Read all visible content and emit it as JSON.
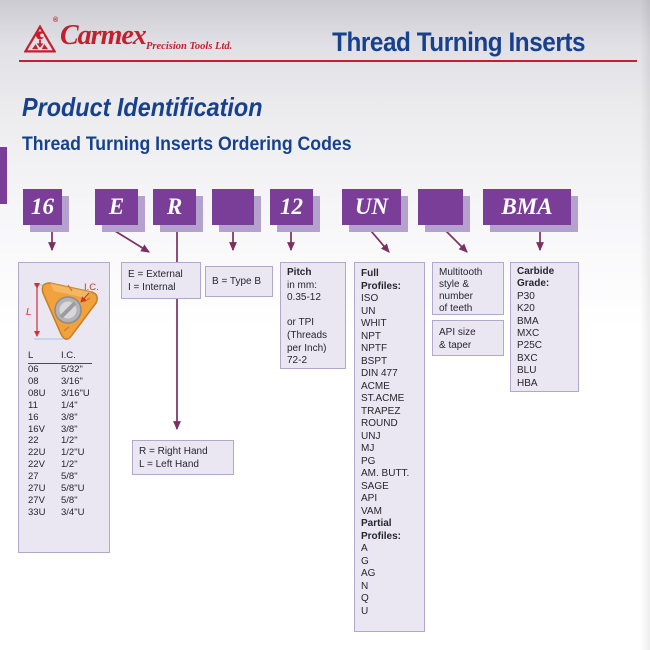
{
  "header": {
    "brand": "Carmex",
    "registered": "®",
    "brand_suffix": "Precision Tools Ltd.",
    "page_title": "Thread Turning Inserts"
  },
  "section": {
    "title": "Product Identification",
    "subtitle": "Thread Turning Inserts Ordering Codes"
  },
  "code_boxes": [
    {
      "id": "size",
      "label": "16"
    },
    {
      "id": "internal-external",
      "label": "E"
    },
    {
      "id": "hand",
      "label": "R"
    },
    {
      "id": "type",
      "label": ""
    },
    {
      "id": "pitch",
      "label": "12"
    },
    {
      "id": "profile",
      "label": "UN"
    },
    {
      "id": "multitooth",
      "label": ""
    },
    {
      "id": "grade",
      "label": "BMA"
    }
  ],
  "insert_diagram": {
    "label_l": "L",
    "label_ic": "I.C."
  },
  "size_table": {
    "headers": [
      "L",
      "I.C."
    ],
    "rows": [
      [
        "06",
        "5/32\""
      ],
      [
        "08",
        "3/16\""
      ],
      [
        "08U",
        "3/16\"U"
      ],
      [
        "11",
        "1/4\""
      ],
      [
        "16",
        "3/8\""
      ],
      [
        "16V",
        "3/8\""
      ],
      [
        "22",
        "1/2\""
      ],
      [
        "22U",
        "1/2\"U"
      ],
      [
        "22V",
        "1/2\""
      ],
      [
        "27",
        "5/8\""
      ],
      [
        "27U",
        "5/8\"U"
      ],
      [
        "27V",
        "5/8\""
      ],
      [
        "33U",
        "3/4\"U"
      ]
    ]
  },
  "notes": {
    "external": {
      "lines": [
        "E = External",
        "I = Internal"
      ]
    },
    "type_b": {
      "lines": [
        "B = Type B"
      ]
    },
    "hand": {
      "lines": [
        "R = Right Hand",
        "L = Left Hand"
      ]
    },
    "pitch": {
      "lines": [
        {
          "t": "Pitch",
          "b": true
        },
        "in mm:",
        "0.35-12",
        "",
        "or TPI",
        "(Threads",
        "per Inch)",
        "72-2"
      ]
    },
    "profiles": {
      "lines": [
        {
          "t": "Full",
          "b": true
        },
        {
          "t": "Profiles:",
          "b": true
        },
        "ISO",
        "UN",
        "WHIT",
        "NPT",
        "NPTF",
        "BSPT",
        "DIN 477",
        "ACME",
        "ST.ACME",
        "TRAPEZ",
        "ROUND",
        "UNJ",
        "MJ",
        "PG",
        "AM. BUTT.",
        "SAGE",
        "API",
        "VAM",
        {
          "t": "Partial",
          "b": true
        },
        {
          "t": "Profiles:",
          "b": true
        },
        "A",
        "G",
        "AG",
        "N",
        "Q",
        "U"
      ]
    },
    "multitooth": {
      "lines": [
        "Multitooth",
        "style &",
        "number",
        "of teeth"
      ]
    },
    "api": {
      "lines": [
        "API size",
        "& taper"
      ]
    },
    "carbide": {
      "lines": [
        {
          "t": "Carbide",
          "b": true
        },
        {
          "t": "Grade:",
          "b": true
        },
        "P30",
        "K20",
        "BMA",
        "MXC",
        "P25C",
        "BXC",
        "BLU",
        "HBA"
      ]
    }
  },
  "colors": {
    "accent_purple": "#7b3e98",
    "shadow_purple": "#b5a1cd",
    "note_bg": "#eae7f2",
    "note_border": "#b3a8cc",
    "arrow": "#7b2f62",
    "heading_blue": "#17418c",
    "brand_red": "#c3202f",
    "insert_orange": "#f1a23f",
    "dimension_red": "#cc3333"
  }
}
